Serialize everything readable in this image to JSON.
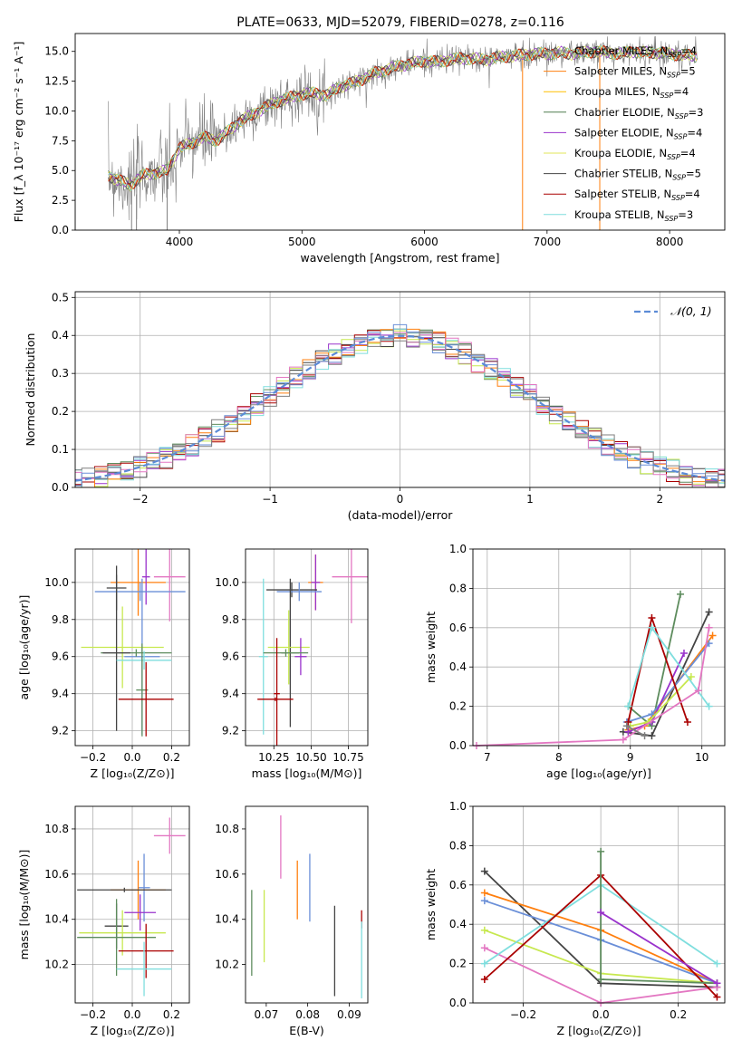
{
  "title": "PLATE=0633, MJD=52079, FIBERID=0278, z=0.116",
  "colors": {
    "c_chab_miles": "#7f7f7f",
    "c_salp_miles": "#ff7f0e",
    "c_krou_miles": "#ffbf00",
    "c_chab_elodie": "#4e7d4e",
    "c_salp_elodie": "#9932cc",
    "c_krou_elodie": "#e1e65a",
    "c_chab_stelib": "#444444",
    "c_salp_stelib": "#aa0000",
    "c_krou_stelib": "#7fdede",
    "c_pink": "#e377c2",
    "c_blue": "#6a8fd8",
    "c_lime": "#c7e84f",
    "c_green": "#5d8c5d"
  },
  "chart_data": [
    {
      "id": "spectrum",
      "type": "line",
      "title": "PLATE=0633, MJD=52079, FIBERID=0278, z=0.116",
      "xlabel": "wavelength [Angstrom, rest frame]",
      "ylabel": "Flux [f_λ 10⁻¹⁷ erg cm⁻² s⁻¹ A⁻¹]",
      "xlim": [
        3150,
        8450
      ],
      "ylim": [
        0,
        16.5
      ],
      "xticks": [
        "4000",
        "5000",
        "6000",
        "7000",
        "8000"
      ],
      "yticks": [
        "0.0",
        "2.5",
        "5.0",
        "7.5",
        "10.0",
        "12.5",
        "15.0"
      ],
      "grid": false,
      "legend_position": "top-right",
      "legend": [
        {
          "label": "Chabrier MILES, N",
          "sub": "SSP",
          "suffix": "=4",
          "color": "#7f7f7f"
        },
        {
          "label": "Salpeter MILES, N",
          "sub": "SSP",
          "suffix": "=5",
          "color": "#ff7f0e"
        },
        {
          "label": "Kroupa MILES, N",
          "sub": "SSP",
          "suffix": "=4",
          "color": "#ffbf00"
        },
        {
          "label": "Chabrier ELODIE, N",
          "sub": "SSP",
          "suffix": "=3",
          "color": "#4e7d4e"
        },
        {
          "label": "Salpeter ELODIE, N",
          "sub": "SSP",
          "suffix": "=4",
          "color": "#9932cc"
        },
        {
          "label": "Kroupa ELODIE, N",
          "sub": "SSP",
          "suffix": "=4",
          "color": "#e1e65a"
        },
        {
          "label": "Chabrier STELIB, N",
          "sub": "SSP",
          "suffix": "=5",
          "color": "#444444"
        },
        {
          "label": "Salpeter STELIB, N",
          "sub": "SSP",
          "suffix": "=4",
          "color": "#aa0000"
        },
        {
          "label": "Kroupa STELIB, N",
          "sub": "SSP",
          "suffix": "=3",
          "color": "#7fdede"
        }
      ],
      "continuum": [
        [
          3420,
          4.6
        ],
        [
          3500,
          4.2
        ],
        [
          3600,
          3.8
        ],
        [
          3700,
          4.6
        ],
        [
          3800,
          4.8
        ],
        [
          3900,
          5.0
        ],
        [
          4000,
          6.9
        ],
        [
          4100,
          7.3
        ],
        [
          4200,
          7.8
        ],
        [
          4300,
          7.5
        ],
        [
          4400,
          8.3
        ],
        [
          4500,
          9.2
        ],
        [
          4600,
          9.7
        ],
        [
          4700,
          10.3
        ],
        [
          4800,
          10.8
        ],
        [
          4900,
          11.1
        ],
        [
          5000,
          11.4
        ],
        [
          5100,
          11.5
        ],
        [
          5200,
          11.3
        ],
        [
          5300,
          12.0
        ],
        [
          5400,
          12.3
        ],
        [
          5500,
          12.7
        ],
        [
          5600,
          13.2
        ],
        [
          5700,
          13.5
        ],
        [
          5800,
          13.8
        ],
        [
          5900,
          14.0
        ],
        [
          6000,
          14.2
        ],
        [
          6100,
          14.1
        ],
        [
          6200,
          14.3
        ],
        [
          6300,
          14.4
        ],
        [
          6400,
          14.4
        ],
        [
          6500,
          14.3
        ],
        [
          6600,
          14.5
        ],
        [
          6700,
          14.6
        ],
        [
          6800,
          14.7
        ],
        [
          6900,
          14.8
        ],
        [
          7000,
          14.8
        ],
        [
          7100,
          14.9
        ],
        [
          7200,
          14.8
        ],
        [
          7300,
          14.9
        ],
        [
          7400,
          15.0
        ],
        [
          7500,
          14.9
        ],
        [
          7600,
          14.8
        ],
        [
          7700,
          15.0
        ],
        [
          7800,
          14.9
        ],
        [
          7900,
          14.9
        ],
        [
          8000,
          14.8
        ],
        [
          8100,
          14.7
        ],
        [
          8230,
          14.6
        ]
      ]
    },
    {
      "id": "residuals",
      "type": "histogram",
      "xlabel": "(data-model)/error",
      "ylabel": "Normed distribution",
      "xlim": [
        -2.5,
        2.5
      ],
      "ylim": [
        0,
        0.515
      ],
      "xticks": [
        "−2",
        "−1",
        "0",
        "1",
        "2"
      ],
      "yticks": [
        "0.0",
        "0.1",
        "0.2",
        "0.3",
        "0.4",
        "0.5"
      ],
      "grid": true,
      "legend_position": "top-right",
      "legend": [
        {
          "label": "𝒩(0, 1)",
          "color": "#5b8bd6"
        }
      ],
      "bin_width": 0.1
    },
    {
      "id": "age_vs_Z",
      "type": "errorbar",
      "xlabel": "Z [log₁₀(Z/Z⊙)]",
      "ylabel": "age  [log₁₀(age/yr)]",
      "xlim": [
        -0.29,
        0.29
      ],
      "ylim": [
        9.12,
        10.18
      ],
      "xticks": [
        "−0.2",
        "0.0",
        "0.2"
      ],
      "yticks": [
        "9.2",
        "9.4",
        "9.6",
        "9.8",
        "10.0"
      ],
      "grid": true,
      "points": [
        {
          "x": 0.19,
          "y": 10.03,
          "xerr": 0.08,
          "yerr": 0.24,
          "c": "#e377c2"
        },
        {
          "x": 0.03,
          "y": 10.0,
          "xerr": 0.14,
          "yerr": 0.18,
          "c": "#ff7f0e"
        },
        {
          "x": 0.07,
          "y": 10.03,
          "xerr": 0.02,
          "yerr": 0.15,
          "c": "#9932cc"
        },
        {
          "x": -0.08,
          "y": 9.97,
          "xerr": 0.05,
          "yerr": 0.12,
          "c": "#444444"
        },
        {
          "x": 0.04,
          "y": 9.95,
          "xerr": 0.23,
          "yerr": 0.05,
          "c": "#6a8fd8"
        },
        {
          "x": 0.05,
          "y": 9.6,
          "xerr": 0.09,
          "yerr": 0.42,
          "c": "#6a8fd8"
        },
        {
          "x": -0.05,
          "y": 9.65,
          "xerr": 0.21,
          "yerr": 0.22,
          "c": "#c7e84f"
        },
        {
          "x": 0.02,
          "y": 9.62,
          "xerr": 0.18,
          "yerr": 0.02,
          "c": "#5d8c5d"
        },
        {
          "x": -0.08,
          "y": 9.62,
          "xerr": 0.07,
          "yerr": 0.42,
          "c": "#444444"
        },
        {
          "x": 0.06,
          "y": 9.58,
          "xerr": 0.14,
          "yerr": 0.05,
          "c": "#7fdede"
        },
        {
          "x": 0.05,
          "y": 9.42,
          "xerr": 0.03,
          "yerr": 0.25,
          "c": "#5d8c5d"
        },
        {
          "x": 0.07,
          "y": 9.37,
          "xerr": 0.14,
          "yerr": 0.2,
          "c": "#aa0000"
        }
      ]
    },
    {
      "id": "age_vs_mass",
      "type": "errorbar",
      "xlabel": "mass [log₁₀(M/M⊙)]",
      "xlim": [
        10.06,
        10.88
      ],
      "ylim": [
        9.12,
        10.18
      ],
      "xticks": [
        "10.25",
        "10.50",
        "10.75"
      ],
      "yticks": [
        "9.2",
        "9.4",
        "9.6",
        "9.8",
        "10.0"
      ],
      "grid": true,
      "points": [
        {
          "x": 10.77,
          "y": 10.03,
          "xerr": 0.13,
          "yerr": 0.25,
          "c": "#e377c2"
        },
        {
          "x": 10.53,
          "y": 10.0,
          "xerr": 0.05,
          "yerr": 0.15,
          "c": "#ff7f0e"
        },
        {
          "x": 10.53,
          "y": 10.0,
          "xerr": 0.03,
          "yerr": 0.15,
          "c": "#9932cc"
        },
        {
          "x": 10.37,
          "y": 9.96,
          "xerr": 0.17,
          "yerr": 0.04,
          "c": "#444444"
        },
        {
          "x": 10.42,
          "y": 9.95,
          "xerr": 0.15,
          "yerr": 0.05,
          "c": "#6a8fd8"
        },
        {
          "x": 10.36,
          "y": 9.62,
          "xerr": 0.06,
          "yerr": 0.4,
          "c": "#444444"
        },
        {
          "x": 10.35,
          "y": 9.65,
          "xerr": 0.14,
          "yerr": 0.2,
          "c": "#c7e84f"
        },
        {
          "x": 10.43,
          "y": 9.6,
          "xerr": 0.04,
          "yerr": 0.1,
          "c": "#9932cc"
        },
        {
          "x": 10.18,
          "y": 9.6,
          "xerr": 0.03,
          "yerr": 0.42,
          "c": "#7fdede"
        },
        {
          "x": 10.33,
          "y": 9.62,
          "xerr": 0.15,
          "yerr": 0.02,
          "c": "#5d8c5d"
        },
        {
          "x": 10.27,
          "y": 9.4,
          "xerr": 0.02,
          "yerr": 0.3,
          "c": "#aa0000"
        },
        {
          "x": 10.26,
          "y": 9.37,
          "xerr": 0.12,
          "yerr": 0.01,
          "c": "#aa0000"
        }
      ]
    },
    {
      "id": "massweight_vs_age",
      "type": "line",
      "xlabel": "age  [log₁₀(age/yr)]",
      "ylabel": "mass weight",
      "xlim": [
        6.8,
        10.32
      ],
      "ylim": [
        0,
        1.0
      ],
      "xticks": [
        "7",
        "8",
        "9",
        "10"
      ],
      "yticks": [
        "0.0",
        "0.2",
        "0.4",
        "0.6",
        "0.8",
        "1.0"
      ],
      "grid": true,
      "series": [
        {
          "c": "#5d8c5d",
          "x": [
            8.97,
            9.3,
            9.7
          ],
          "y": [
            0.2,
            0.1,
            0.77
          ]
        },
        {
          "c": "#444444",
          "x": [
            8.9,
            9.3,
            10.1
          ],
          "y": [
            0.07,
            0.05,
            0.68
          ]
        },
        {
          "c": "#ff7f0e",
          "x": [
            8.97,
            9.2,
            10.15
          ],
          "y": [
            0.08,
            0.1,
            0.56
          ]
        },
        {
          "c": "#6a8fd8",
          "x": [
            8.95,
            9.3,
            10.1
          ],
          "y": [
            0.12,
            0.16,
            0.52
          ]
        },
        {
          "c": "#9932cc",
          "x": [
            8.97,
            9.3,
            9.75
          ],
          "y": [
            0.07,
            0.12,
            0.47
          ]
        },
        {
          "c": "#c7e84f",
          "x": [
            9.0,
            9.25,
            9.85
          ],
          "y": [
            0.1,
            0.12,
            0.35
          ]
        },
        {
          "c": "#aa0000",
          "x": [
            8.97,
            9.3,
            9.8
          ],
          "y": [
            0.12,
            0.65,
            0.12
          ]
        },
        {
          "c": "#7fdede",
          "x": [
            8.97,
            9.3,
            10.1
          ],
          "y": [
            0.2,
            0.6,
            0.2
          ]
        },
        {
          "c": "#e377c2",
          "x": [
            6.85,
            8.9,
            9.95,
            10.1
          ],
          "y": [
            0.0,
            0.03,
            0.28,
            0.6
          ]
        },
        {
          "c": "#7f7f7f",
          "x": [
            8.95,
            9.2
          ],
          "y": [
            0.1,
            0.05
          ]
        }
      ]
    },
    {
      "id": "mass_vs_Z",
      "type": "errorbar",
      "xlabel": "Z [log₁₀(Z/Z⊙)]",
      "ylabel": "mass [log₁₀(M/M⊙)]",
      "xlim": [
        -0.29,
        0.29
      ],
      "ylim": [
        10.03,
        10.9
      ],
      "xticks": [
        "−0.2",
        "0.0",
        "0.2"
      ],
      "yticks": [
        "10.2",
        "10.4",
        "10.6",
        "10.8"
      ],
      "grid": true,
      "points": [
        {
          "x": 0.19,
          "y": 10.77,
          "xerr": 0.08,
          "yerr": 0.08,
          "c": "#e377c2"
        },
        {
          "x": 0.06,
          "y": 10.54,
          "xerr": 0.03,
          "yerr": 0.15,
          "c": "#6a8fd8"
        },
        {
          "x": 0.03,
          "y": 10.53,
          "xerr": 0.14,
          "yerr": 0.13,
          "c": "#ff7f0e"
        },
        {
          "x": -0.04,
          "y": 10.53,
          "xerr": 0.24,
          "yerr": 0.01,
          "c": "#444444"
        },
        {
          "x": 0.04,
          "y": 10.43,
          "xerr": 0.08,
          "yerr": 0.08,
          "c": "#9932cc"
        },
        {
          "x": -0.08,
          "y": 10.37,
          "xerr": 0.06,
          "yerr": 0.1,
          "c": "#444444"
        },
        {
          "x": -0.05,
          "y": 10.34,
          "xerr": 0.22,
          "yerr": 0.1,
          "c": "#c7e84f"
        },
        {
          "x": -0.08,
          "y": 10.32,
          "xerr": 0.2,
          "yerr": 0.17,
          "c": "#5d8c5d"
        },
        {
          "x": 0.07,
          "y": 10.26,
          "xerr": 0.14,
          "yerr": 0.12,
          "c": "#aa0000"
        },
        {
          "x": 0.06,
          "y": 10.18,
          "xerr": 0.14,
          "yerr": 0.12,
          "c": "#7fdede"
        }
      ]
    },
    {
      "id": "mass_vs_ebv",
      "type": "errorbar",
      "xlabel": "E(B-V)",
      "xlim": [
        0.065,
        0.0945
      ],
      "ylim": [
        10.03,
        10.9
      ],
      "xticks": [
        "0.07",
        "0.08",
        "0.09"
      ],
      "yticks": [
        "10.2",
        "10.4",
        "10.6",
        "10.8"
      ],
      "grid": false,
      "points": [
        {
          "x": 0.0665,
          "y": 10.34,
          "xerr": 0,
          "yerr": 0.19,
          "c": "#5d8c5d"
        },
        {
          "x": 0.0695,
          "y": 10.37,
          "xerr": 0,
          "yerr": 0.16,
          "c": "#c7e84f"
        },
        {
          "x": 0.0735,
          "y": 10.72,
          "xerr": 0,
          "yerr": 0.14,
          "c": "#e377c2"
        },
        {
          "x": 0.0775,
          "y": 10.53,
          "xerr": 0,
          "yerr": 0.13,
          "c": "#ff7f0e"
        },
        {
          "x": 0.0805,
          "y": 10.54,
          "xerr": 0,
          "yerr": 0.15,
          "c": "#6a8fd8"
        },
        {
          "x": 0.0865,
          "y": 10.26,
          "xerr": 0,
          "yerr": 0.2,
          "c": "#444444"
        },
        {
          "x": 0.093,
          "y": 10.4,
          "xerr": 0,
          "yerr": 0.04,
          "c": "#aa0000"
        },
        {
          "x": 0.093,
          "y": 10.22,
          "xerr": 0,
          "yerr": 0.17,
          "c": "#7fdede"
        }
      ]
    },
    {
      "id": "massweight_vs_Z",
      "type": "line",
      "xlabel": "Z [log₁₀(Z/Z⊙)]",
      "ylabel": "mass weight",
      "xlim": [
        -0.33,
        0.32
      ],
      "ylim": [
        0,
        1.0
      ],
      "xticks": [
        "−0.2",
        "0.0",
        "0.2"
      ],
      "yticks": [
        "0.0",
        "0.2",
        "0.4",
        "0.6",
        "0.8",
        "1.0"
      ],
      "grid": true,
      "series": [
        {
          "c": "#444444",
          "x": [
            -0.3,
            0.0,
            0.3
          ],
          "y": [
            0.67,
            0.1,
            0.08
          ]
        },
        {
          "c": "#ff7f0e",
          "x": [
            -0.3,
            0.0,
            0.3
          ],
          "y": [
            0.56,
            0.37,
            0.1
          ]
        },
        {
          "c": "#6a8fd8",
          "x": [
            -0.3,
            0.0,
            0.3
          ],
          "y": [
            0.52,
            0.32,
            0.1
          ]
        },
        {
          "c": "#c7e84f",
          "x": [
            -0.3,
            0.0,
            0.3
          ],
          "y": [
            0.37,
            0.15,
            0.1
          ]
        },
        {
          "c": "#e377c2",
          "x": [
            -0.3,
            0.0,
            0.3
          ],
          "y": [
            0.28,
            0.0,
            0.08
          ]
        },
        {
          "c": "#7fdede",
          "x": [
            -0.3,
            0.0,
            0.3
          ],
          "y": [
            0.2,
            0.6,
            0.2
          ]
        },
        {
          "c": "#aa0000",
          "x": [
            -0.3,
            0.0,
            0.3
          ],
          "y": [
            0.12,
            0.65,
            0.03
          ]
        },
        {
          "c": "#5d8c5d",
          "x": [
            0.0,
            0.0,
            0.3
          ],
          "y": [
            0.77,
            0.12,
            0.1
          ]
        },
        {
          "c": "#9932cc",
          "x": [
            0.0,
            0.3
          ],
          "y": [
            0.46,
            0.1
          ]
        }
      ]
    }
  ]
}
